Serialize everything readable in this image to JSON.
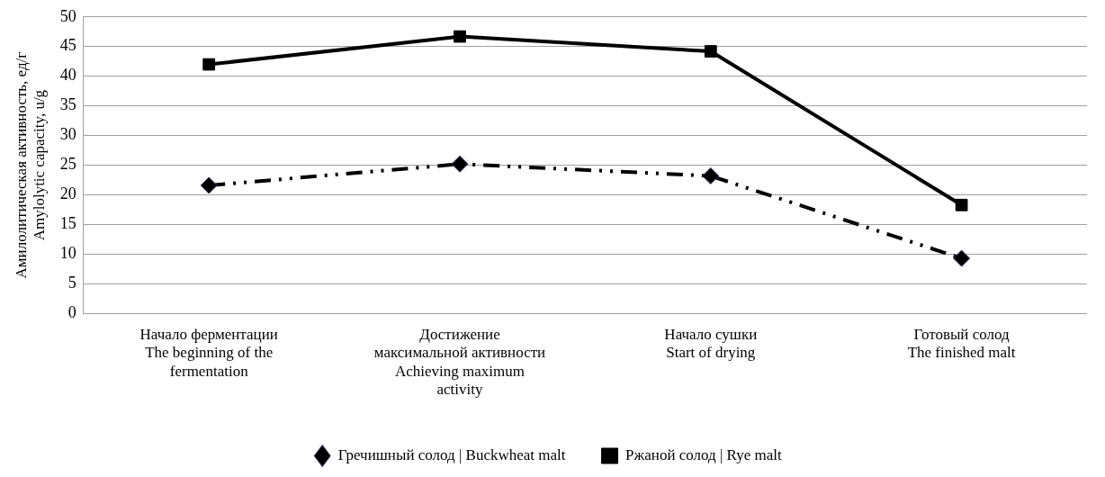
{
  "chart_data": {
    "type": "line",
    "ylabel": "Амилолитическая активность, ед/г\nAmylolytic capacity, u/g",
    "categories": [
      "Начало ферментации\nThe beginning of the\nfermentation",
      "Достижение\nмаксимальной активности\nAchieving maximum\nactivity",
      "Начало сушки\nStart of drying",
      "Готовый солод\nThe finished malt"
    ],
    "series": [
      {
        "name": "Гречишный солод | Buckwheat malt",
        "color": "#000000",
        "marker": "diamond",
        "line_style": "dashed",
        "values": [
          21.6,
          25.2,
          23.2,
          9.3
        ]
      },
      {
        "name": "Ржаной солод | Rye malt",
        "color": "#000000",
        "marker": "square",
        "line_style": "solid",
        "values": [
          42.0,
          46.7,
          44.2,
          18.3
        ]
      }
    ],
    "ylim": [
      0,
      50
    ],
    "yticks": [
      0,
      5,
      10,
      15,
      20,
      25,
      30,
      35,
      40,
      45,
      50
    ],
    "grid": "y",
    "legend": "bottom"
  }
}
